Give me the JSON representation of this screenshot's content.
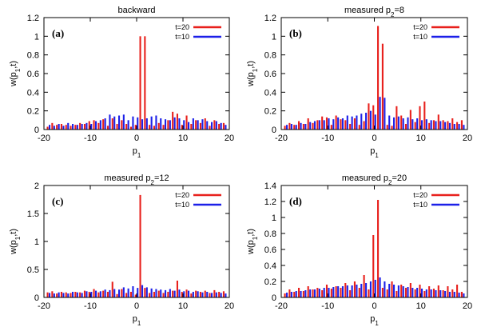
{
  "chart_data": [
    {
      "type": "bar",
      "panel_label": "(a)",
      "title": "backward",
      "xlabel": "p",
      "xlabel_sub": "1",
      "ylabel": "w(p",
      "ylabel_sub": "1",
      "ylabel_tail": ",t)",
      "xlim": [
        -20,
        20
      ],
      "ylim": [
        0,
        1.2
      ],
      "x_ticks": [
        -20,
        -10,
        0,
        10,
        20
      ],
      "y_ticks": [
        0,
        0.2,
        0.4,
        0.6,
        0.8,
        1,
        1.2
      ],
      "legend_position": "top-right",
      "series": [
        {
          "name": "t=20",
          "color": "#e8201c",
          "x": [
            -19,
            -18,
            -17,
            -16,
            -15,
            -14,
            -13,
            -12,
            -11,
            -10,
            -9,
            -8,
            -7,
            -6,
            -5,
            -4,
            -3,
            -2,
            -1,
            0,
            1,
            2,
            3,
            4,
            5,
            6,
            7,
            8,
            9,
            10,
            11,
            12,
            13,
            14,
            15,
            16,
            17,
            18,
            19
          ],
          "values": [
            0.03,
            0.07,
            0.05,
            0.06,
            0.05,
            0.04,
            0.05,
            0.07,
            0.06,
            0.09,
            0.1,
            0.07,
            0.11,
            0.04,
            0.12,
            0.06,
            0.1,
            0.06,
            0.03,
            0.05,
            1.0,
            1.0,
            0.05,
            0.04,
            0.07,
            0.05,
            0.1,
            0.19,
            0.17,
            0.05,
            0.15,
            0.06,
            0.1,
            0.07,
            0.12,
            0.04,
            0.1,
            0.06,
            0.07
          ]
        },
        {
          "name": "t=10",
          "color": "#1c20e8",
          "x": [
            -19,
            -18,
            -17,
            -16,
            -15,
            -14,
            -13,
            -12,
            -11,
            -10,
            -9,
            -8,
            -7,
            -6,
            -5,
            -4,
            -3,
            -2,
            -1,
            0,
            1,
            2,
            3,
            4,
            5,
            6,
            7,
            8,
            9,
            10,
            11,
            12,
            13,
            14,
            15,
            16,
            17,
            18,
            19
          ],
          "values": [
            0.05,
            0.04,
            0.06,
            0.04,
            0.07,
            0.06,
            0.05,
            0.06,
            0.07,
            0.06,
            0.09,
            0.1,
            0.12,
            0.16,
            0.14,
            0.15,
            0.16,
            0.1,
            0.14,
            0.13,
            0.11,
            0.12,
            0.14,
            0.15,
            0.12,
            0.11,
            0.1,
            0.13,
            0.12,
            0.1,
            0.08,
            0.12,
            0.1,
            0.11,
            0.09,
            0.08,
            0.09,
            0.07,
            0.05
          ]
        }
      ]
    },
    {
      "type": "bar",
      "panel_label": "(b)",
      "title": "measured p",
      "title_sub": "2",
      "title_tail": "=8",
      "xlabel": "p",
      "xlabel_sub": "1",
      "ylabel": "w(p",
      "ylabel_sub": "1",
      "ylabel_tail": ",t)",
      "xlim": [
        -20,
        20
      ],
      "ylim": [
        0,
        1.2
      ],
      "x_ticks": [
        -20,
        -10,
        0,
        10,
        20
      ],
      "y_ticks": [
        0,
        0.2,
        0.4,
        0.6,
        0.8,
        1,
        1.2
      ],
      "legend_position": "top-right",
      "series": [
        {
          "name": "t=20",
          "color": "#e8201c",
          "x": [
            -19,
            -18,
            -17,
            -16,
            -15,
            -14,
            -13,
            -12,
            -11,
            -10,
            -9,
            -8,
            -7,
            -6,
            -5,
            -4,
            -3,
            -2,
            -1,
            0,
            1,
            2,
            3,
            4,
            5,
            6,
            7,
            8,
            9,
            10,
            11,
            12,
            13,
            14,
            15,
            16,
            17,
            18,
            19
          ],
          "values": [
            0.04,
            0.07,
            0.05,
            0.09,
            0.06,
            0.12,
            0.07,
            0.1,
            0.14,
            0.13,
            0.05,
            0.15,
            0.11,
            0.1,
            0.06,
            0.12,
            0.05,
            0.09,
            0.28,
            0.26,
            1.11,
            0.92,
            0.05,
            0.04,
            0.25,
            0.15,
            0.06,
            0.21,
            0.08,
            0.25,
            0.3,
            0.07,
            0.1,
            0.16,
            0.1,
            0.09,
            0.12,
            0.08,
            0.1
          ]
        },
        {
          "name": "t=10",
          "color": "#1c20e8",
          "x": [
            -19,
            -18,
            -17,
            -16,
            -15,
            -14,
            -13,
            -12,
            -11,
            -10,
            -9,
            -8,
            -7,
            -6,
            -5,
            -4,
            -3,
            -2,
            -1,
            0,
            1,
            2,
            3,
            4,
            5,
            6,
            7,
            8,
            9,
            10,
            11,
            12,
            13,
            14,
            15,
            16,
            17,
            18,
            19
          ],
          "values": [
            0.05,
            0.06,
            0.05,
            0.07,
            0.06,
            0.08,
            0.09,
            0.1,
            0.1,
            0.12,
            0.11,
            0.13,
            0.12,
            0.15,
            0.14,
            0.15,
            0.17,
            0.18,
            0.2,
            0.16,
            0.35,
            0.34,
            0.15,
            0.13,
            0.14,
            0.12,
            0.13,
            0.11,
            0.12,
            0.1,
            0.11,
            0.1,
            0.09,
            0.09,
            0.08,
            0.07,
            0.06,
            0.06,
            0.05
          ]
        }
      ]
    },
    {
      "type": "bar",
      "panel_label": "(c)",
      "title": "measured p",
      "title_sub": "2",
      "title_tail": "=12",
      "xlabel": "p",
      "xlabel_sub": "1",
      "ylabel": "w(p",
      "ylabel_sub": "1",
      "ylabel_tail": ",t)",
      "xlim": [
        -20,
        20
      ],
      "ylim": [
        0,
        2
      ],
      "x_ticks": [
        -20,
        -10,
        0,
        10,
        20
      ],
      "y_ticks": [
        0,
        0.5,
        1,
        1.5,
        2
      ],
      "legend_position": "top-right",
      "series": [
        {
          "name": "t=20",
          "color": "#e8201c",
          "x": [
            -19,
            -18,
            -17,
            -16,
            -15,
            -14,
            -13,
            -12,
            -11,
            -10,
            -9,
            -8,
            -7,
            -6,
            -5,
            -4,
            -3,
            -2,
            -1,
            0,
            1,
            2,
            3,
            4,
            5,
            6,
            7,
            8,
            9,
            10,
            11,
            12,
            13,
            14,
            15,
            16,
            17,
            18,
            19
          ],
          "values": [
            0.09,
            0.11,
            0.07,
            0.1,
            0.09,
            0.08,
            0.1,
            0.09,
            0.12,
            0.1,
            0.15,
            0.09,
            0.12,
            0.1,
            0.28,
            0.06,
            0.15,
            0.08,
            0.1,
            0.05,
            1.83,
            0.17,
            0.08,
            0.1,
            0.12,
            0.08,
            0.1,
            0.12,
            0.3,
            0.1,
            0.14,
            0.07,
            0.12,
            0.1,
            0.12,
            0.08,
            0.13,
            0.1,
            0.11
          ]
        },
        {
          "name": "t=10",
          "color": "#1c20e8",
          "x": [
            -19,
            -18,
            -17,
            -16,
            -15,
            -14,
            -13,
            -12,
            -11,
            -10,
            -9,
            -8,
            -7,
            -6,
            -5,
            -4,
            -3,
            -2,
            -1,
            0,
            1,
            2,
            3,
            4,
            5,
            6,
            7,
            8,
            9,
            10,
            11,
            12,
            13,
            14,
            15,
            16,
            17,
            18,
            19
          ],
          "values": [
            0.08,
            0.07,
            0.09,
            0.08,
            0.07,
            0.1,
            0.09,
            0.08,
            0.11,
            0.1,
            0.12,
            0.11,
            0.14,
            0.13,
            0.15,
            0.14,
            0.18,
            0.16,
            0.2,
            0.17,
            0.22,
            0.18,
            0.16,
            0.15,
            0.14,
            0.13,
            0.15,
            0.12,
            0.14,
            0.11,
            0.12,
            0.1,
            0.11,
            0.09,
            0.1,
            0.08,
            0.09,
            0.08,
            0.07
          ]
        }
      ]
    },
    {
      "type": "bar",
      "panel_label": "(d)",
      "title": "measured p",
      "title_sub": "2",
      "title_tail": "=20",
      "xlabel": "p",
      "xlabel_sub": "1",
      "ylabel": "w(p",
      "ylabel_sub": "1",
      "ylabel_tail": ",t)",
      "xlim": [
        -20,
        20
      ],
      "ylim": [
        0,
        1.4
      ],
      "x_ticks": [
        -20,
        -10,
        0,
        10,
        20
      ],
      "y_ticks": [
        0,
        0.2,
        0.4,
        0.6,
        0.8,
        1,
        1.2,
        1.4
      ],
      "legend_position": "top-right",
      "series": [
        {
          "name": "t=20",
          "color": "#e8201c",
          "x": [
            -19,
            -18,
            -17,
            -16,
            -15,
            -14,
            -13,
            -12,
            -11,
            -10,
            -9,
            -8,
            -7,
            -6,
            -5,
            -4,
            -3,
            -2,
            -1,
            0,
            1,
            2,
            3,
            4,
            5,
            6,
            7,
            8,
            9,
            10,
            11,
            12,
            13,
            14,
            15,
            16,
            17,
            18,
            19
          ],
          "values": [
            0.05,
            0.1,
            0.07,
            0.12,
            0.08,
            0.14,
            0.1,
            0.12,
            0.09,
            0.16,
            0.11,
            0.14,
            0.12,
            0.18,
            0.09,
            0.2,
            0.12,
            0.28,
            0.1,
            0.78,
            1.22,
            0.12,
            0.1,
            0.2,
            0.08,
            0.16,
            0.12,
            0.18,
            0.1,
            0.16,
            0.08,
            0.14,
            0.11,
            0.15,
            0.09,
            0.14,
            0.1,
            0.16,
            0.07
          ]
        },
        {
          "name": "t=10",
          "color": "#1c20e8",
          "x": [
            -19,
            -18,
            -17,
            -16,
            -15,
            -14,
            -13,
            -12,
            -11,
            -10,
            -9,
            -8,
            -7,
            -6,
            -5,
            -4,
            -3,
            -2,
            -1,
            0,
            1,
            2,
            3,
            4,
            5,
            6,
            7,
            8,
            9,
            10,
            11,
            12,
            13,
            14,
            15,
            16,
            17,
            18,
            19
          ],
          "values": [
            0.06,
            0.07,
            0.08,
            0.08,
            0.09,
            0.1,
            0.1,
            0.11,
            0.12,
            0.12,
            0.13,
            0.14,
            0.14,
            0.15,
            0.15,
            0.16,
            0.17,
            0.18,
            0.2,
            0.22,
            0.25,
            0.2,
            0.17,
            0.16,
            0.15,
            0.14,
            0.13,
            0.12,
            0.12,
            0.11,
            0.1,
            0.1,
            0.09,
            0.09,
            0.08,
            0.07,
            0.07,
            0.06,
            0.05
          ]
        }
      ]
    }
  ]
}
